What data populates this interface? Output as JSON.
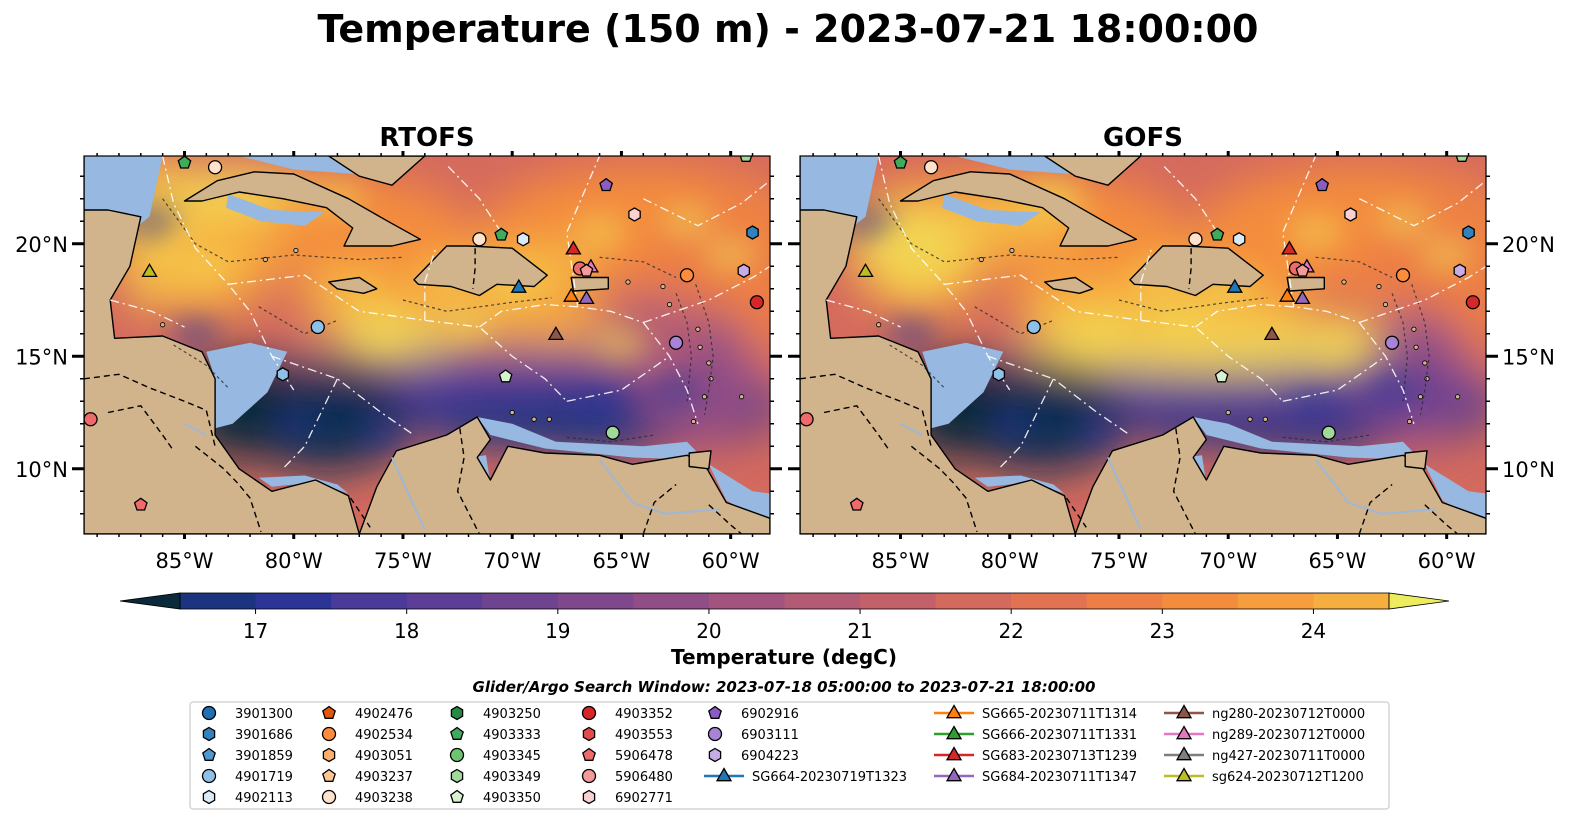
{
  "figure": {
    "title": "Temperature (150 m) - 2023-07-21 18:00:00",
    "search_window": "Glider/Argo Search Window: 2023-07-18 05:00:00 to 2023-07-21 18:00:00"
  },
  "chart_data": {
    "type": "heatmap",
    "panels": [
      {
        "title": "RTOFS",
        "model": "rtofs"
      },
      {
        "title": "GOFS",
        "model": "gofs"
      }
    ],
    "lon_range": [
      -89.6,
      -58.2
    ],
    "lat_range": [
      7.1,
      23.9
    ],
    "x_ticks": [
      -85,
      -80,
      -75,
      -70,
      -65,
      -60
    ],
    "x_tick_labels": [
      "85°W",
      "80°W",
      "75°W",
      "70°W",
      "65°W",
      "60°W"
    ],
    "y_ticks": [
      10,
      15,
      20
    ],
    "y_tick_labels": [
      "10°N",
      "15°N",
      "20°N"
    ],
    "colorbar": {
      "label": "Temperature (degC)",
      "min": 16.5,
      "max": 24.5,
      "step": 0.5,
      "ticks": [
        17,
        18,
        19,
        20,
        21,
        22,
        23,
        24
      ],
      "extend": "both",
      "colors": [
        "#0a2a3c",
        "#0f2f52",
        "#1c3480",
        "#2c3496",
        "#4a3a9a",
        "#5d3e96",
        "#6e4491",
        "#80488c",
        "#914e86",
        "#a2547e",
        "#b35b75",
        "#c3616b",
        "#d46a5e",
        "#e27352",
        "#ed7e45",
        "#f48c3d",
        "#f69d3d",
        "#f7ae40",
        "#f5c247",
        "#f2d653",
        "#ecec5f"
      ]
    },
    "land_color": "#d2b48c",
    "shelf_color": "#97b8e0",
    "legend": {
      "columns": [
        [
          {
            "label": "3901300",
            "marker": "circle",
            "color": "#1f6fb2"
          },
          {
            "label": "3901686",
            "marker": "hexagon",
            "color": "#3182bd"
          },
          {
            "label": "3901859",
            "marker": "pentagon",
            "color": "#4f98d0"
          },
          {
            "label": "4901719",
            "marker": "circle",
            "color": "#8fc1e8"
          },
          {
            "label": "4902113",
            "marker": "hexagon",
            "color": "#dbeaf7"
          }
        ],
        [
          {
            "label": "4902476",
            "marker": "pentagon",
            "color": "#e6550d"
          },
          {
            "label": "4902534",
            "marker": "circle",
            "color": "#fd8d3c"
          },
          {
            "label": "4903051",
            "marker": "hexagon",
            "color": "#fdae6b"
          },
          {
            "label": "4903237",
            "marker": "pentagon",
            "color": "#fdc592"
          },
          {
            "label": "4903238",
            "marker": "circle",
            "color": "#fee3cc"
          }
        ],
        [
          {
            "label": "4903250",
            "marker": "hexagon",
            "color": "#238b45"
          },
          {
            "label": "4903333",
            "marker": "pentagon",
            "color": "#41ab5d"
          },
          {
            "label": "4903345",
            "marker": "circle",
            "color": "#6cc46f"
          },
          {
            "label": "4903349",
            "marker": "hexagon",
            "color": "#a1d99b"
          },
          {
            "label": "4903350",
            "marker": "pentagon",
            "color": "#d8f2d0"
          }
        ],
        [
          {
            "label": "4903352",
            "marker": "circle",
            "color": "#d62728"
          },
          {
            "label": "4903553",
            "marker": "hexagon",
            "color": "#e34a4a"
          },
          {
            "label": "5906478",
            "marker": "pentagon",
            "color": "#ef6b6b"
          },
          {
            "label": "5906480",
            "marker": "circle",
            "color": "#f49a9a"
          },
          {
            "label": "6902771",
            "marker": "hexagon",
            "color": "#fbd0d0"
          }
        ],
        [
          {
            "label": "6902916",
            "marker": "pentagon",
            "color": "#8a5cc4"
          },
          {
            "label": "6903111",
            "marker": "circle",
            "color": "#a883d6"
          },
          {
            "label": "6904223",
            "marker": "hexagon",
            "color": "#c8ace6"
          },
          {
            "label": "SG664-20230719T1323",
            "marker": "triangle",
            "color": "#1f77b4",
            "line": true
          }
        ],
        [
          {
            "label": "SG665-20230711T1314",
            "marker": "triangle",
            "color": "#ff7f0e",
            "line": true
          },
          {
            "label": "SG666-20230711T1331",
            "marker": "triangle",
            "color": "#2ca02c",
            "line": true
          },
          {
            "label": "SG683-20230713T1239",
            "marker": "triangle",
            "color": "#d62728",
            "line": true
          },
          {
            "label": "SG684-20230711T1347",
            "marker": "triangle",
            "color": "#9467bd",
            "line": true
          }
        ],
        [
          {
            "label": "ng280-20230712T0000",
            "marker": "triangle",
            "color": "#8c564b",
            "line": true
          },
          {
            "label": "ng289-20230712T0000",
            "marker": "triangle",
            "color": "#e377c2",
            "line": true
          },
          {
            "label": "ng427-20230711T0000",
            "marker": "triangle",
            "color": "#7f7f7f",
            "line": true
          },
          {
            "label": "sg624-20230712T1200",
            "marker": "triangle",
            "color": "#bcbd22",
            "line": true
          }
        ]
      ]
    },
    "markers": [
      {
        "lon": -85.0,
        "lat": 23.6,
        "marker": "pentagon",
        "color": "#41ab5d"
      },
      {
        "lon": -83.6,
        "lat": 23.4,
        "marker": "circle",
        "color": "#fee3cc"
      },
      {
        "lon": -59.3,
        "lat": 23.9,
        "marker": "pentagon",
        "color": "#a1d99b"
      },
      {
        "lon": -65.7,
        "lat": 22.6,
        "marker": "pentagon",
        "color": "#8a5cc4"
      },
      {
        "lon": -64.4,
        "lat": 21.3,
        "marker": "hexagon",
        "color": "#fbd0d0"
      },
      {
        "lon": -71.5,
        "lat": 20.2,
        "marker": "circle",
        "color": "#fee3cc"
      },
      {
        "lon": -70.5,
        "lat": 20.4,
        "marker": "pentagon",
        "color": "#41ab5d"
      },
      {
        "lon": -69.5,
        "lat": 20.2,
        "marker": "hexagon",
        "color": "#dbeaf7"
      },
      {
        "lon": -67.2,
        "lat": 19.8,
        "marker": "triangle",
        "color": "#d62728"
      },
      {
        "lon": -66.9,
        "lat": 18.9,
        "marker": "circle",
        "color": "#ef6b6b"
      },
      {
        "lon": -66.4,
        "lat": 19.0,
        "marker": "triangle",
        "color": "#e377c2"
      },
      {
        "lon": -66.6,
        "lat": 18.8,
        "marker": "pentagon",
        "color": "#f49a9a"
      },
      {
        "lon": -59.0,
        "lat": 20.5,
        "marker": "hexagon",
        "color": "#3182bd"
      },
      {
        "lon": -86.6,
        "lat": 18.8,
        "marker": "triangle",
        "color": "#bcbd22"
      },
      {
        "lon": -62.0,
        "lat": 18.6,
        "marker": "circle",
        "color": "#fd8d3c"
      },
      {
        "lon": -59.4,
        "lat": 18.8,
        "marker": "hexagon",
        "color": "#c8ace6"
      },
      {
        "lon": -69.7,
        "lat": 18.1,
        "marker": "triangle",
        "color": "#1f77b4"
      },
      {
        "lon": -67.3,
        "lat": 17.7,
        "marker": "triangle",
        "color": "#ff7f0e"
      },
      {
        "lon": -66.6,
        "lat": 17.6,
        "marker": "triangle",
        "color": "#9467bd"
      },
      {
        "lon": -58.8,
        "lat": 17.4,
        "marker": "circle",
        "color": "#d62728"
      },
      {
        "lon": -78.9,
        "lat": 16.3,
        "marker": "circle",
        "color": "#8fc1e8"
      },
      {
        "lon": -68.0,
        "lat": 16.0,
        "marker": "triangle",
        "color": "#8c564b"
      },
      {
        "lon": -62.5,
        "lat": 15.6,
        "marker": "circle",
        "color": "#a883d6"
      },
      {
        "lon": -80.5,
        "lat": 14.2,
        "marker": "hexagon",
        "color": "#8fc1e8"
      },
      {
        "lon": -70.3,
        "lat": 14.1,
        "marker": "pentagon",
        "color": "#d8f2d0"
      },
      {
        "lon": -89.3,
        "lat": 12.2,
        "marker": "circle",
        "color": "#ef6b6b"
      },
      {
        "lon": -65.4,
        "lat": 11.6,
        "marker": "circle",
        "color": "#a1d99b"
      },
      {
        "lon": -87.0,
        "lat": 8.4,
        "marker": "pentagon",
        "color": "#ef6b6b"
      }
    ]
  }
}
